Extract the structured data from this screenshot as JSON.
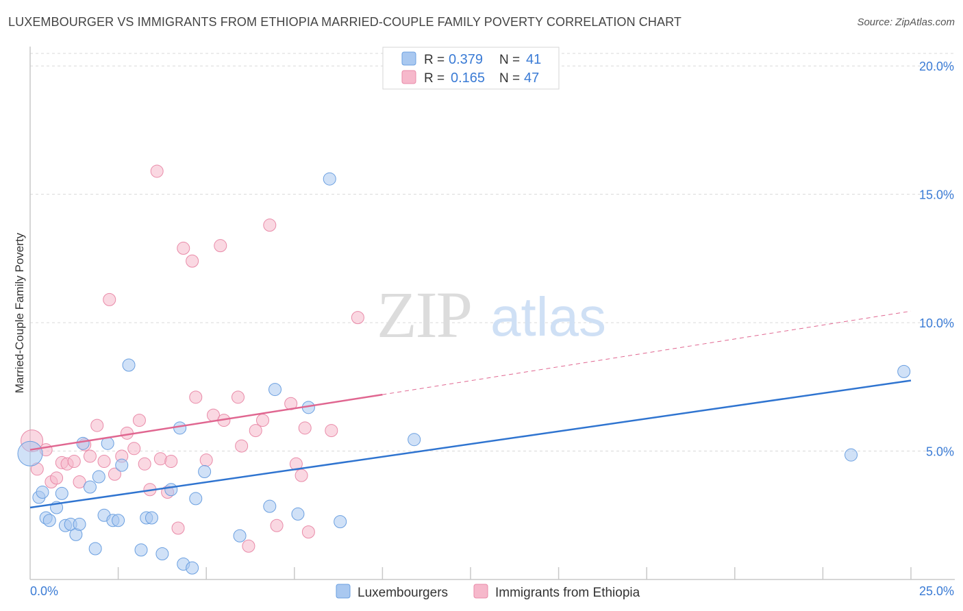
{
  "title": "LUXEMBOURGER VS IMMIGRANTS FROM ETHIOPIA MARRIED-COUPLE FAMILY POVERTY CORRELATION CHART",
  "source": "Source: ZipAtlas.com",
  "watermark": {
    "zip": "ZIP",
    "atlas": "atlas"
  },
  "colors": {
    "blue_fill": "#a9c8f0",
    "blue_stroke": "#6a9fe0",
    "blue_line": "#2f74d0",
    "pink_fill": "#f6b8cb",
    "pink_stroke": "#e98aa8",
    "pink_line": "#e06690",
    "tick_text": "#3a7bd5",
    "grid": "#d9d9d9"
  },
  "chart_data": {
    "type": "scatter",
    "xlabel": "",
    "ylabel": "Married-Couple Family Poverty",
    "xlim": [
      0,
      25
    ],
    "ylim": [
      0,
      20.5
    ],
    "x_tick_labels": [
      "0.0%",
      "25.0%"
    ],
    "y_ticks": [
      5,
      10,
      15,
      20
    ],
    "y_tick_labels": [
      "5.0%",
      "10.0%",
      "15.0%",
      "20.0%"
    ],
    "legend": [
      {
        "r_label": "R =",
        "r_value": "0.379",
        "n_label": "N =",
        "n_value": "41"
      },
      {
        "r_label": "R =",
        "r_value": "0.165",
        "n_label": "N =",
        "n_value": "47"
      }
    ],
    "series": [
      {
        "name": "Luxembourgers",
        "trend": {
          "x0": 0,
          "y0": 2.8,
          "x1": 25,
          "y1": 7.75
        },
        "points": [
          [
            0.0,
            4.9,
            18
          ],
          [
            0.25,
            3.2,
            9
          ],
          [
            0.35,
            3.4,
            9
          ],
          [
            0.45,
            2.4,
            9
          ],
          [
            0.55,
            2.3,
            9
          ],
          [
            0.75,
            2.8,
            9
          ],
          [
            0.9,
            3.35,
            9
          ],
          [
            1.0,
            2.1,
            9
          ],
          [
            1.15,
            2.15,
            9
          ],
          [
            1.3,
            1.75,
            9
          ],
          [
            1.4,
            2.15,
            9
          ],
          [
            1.5,
            5.3,
            9
          ],
          [
            1.7,
            3.6,
            9
          ],
          [
            1.85,
            1.2,
            9
          ],
          [
            1.95,
            4.0,
            9
          ],
          [
            2.1,
            2.5,
            9
          ],
          [
            2.2,
            5.3,
            9
          ],
          [
            2.35,
            2.3,
            9
          ],
          [
            2.5,
            2.3,
            9
          ],
          [
            2.6,
            4.45,
            9
          ],
          [
            2.8,
            8.35,
            9
          ],
          [
            3.15,
            1.15,
            9
          ],
          [
            3.3,
            2.4,
            9
          ],
          [
            3.45,
            2.4,
            9
          ],
          [
            3.75,
            1.0,
            9
          ],
          [
            4.0,
            3.5,
            9
          ],
          [
            4.25,
            5.9,
            9
          ],
          [
            4.35,
            0.6,
            9
          ],
          [
            4.6,
            0.45,
            9
          ],
          [
            4.7,
            3.15,
            9
          ],
          [
            4.95,
            4.2,
            9
          ],
          [
            5.95,
            1.7,
            9
          ],
          [
            6.8,
            2.85,
            9
          ],
          [
            6.95,
            7.4,
            9
          ],
          [
            7.6,
            2.55,
            9
          ],
          [
            7.9,
            6.7,
            9
          ],
          [
            8.5,
            15.6,
            9
          ],
          [
            8.8,
            2.25,
            9
          ],
          [
            10.9,
            5.45,
            9
          ],
          [
            23.3,
            4.85,
            9
          ],
          [
            24.8,
            8.1,
            9
          ]
        ]
      },
      {
        "name": "Immigrants from Ethiopia",
        "trend": {
          "x0": 0,
          "y0": 5.05,
          "x1": 10,
          "y1": 7.2,
          "dash_x1": 25,
          "dash_y1": 10.45
        },
        "points": [
          [
            0.05,
            5.4,
            16
          ],
          [
            0.2,
            4.3,
            9
          ],
          [
            0.45,
            5.05,
            9
          ],
          [
            0.6,
            3.8,
            9
          ],
          [
            0.75,
            3.95,
            9
          ],
          [
            0.9,
            4.55,
            9
          ],
          [
            1.05,
            4.5,
            9
          ],
          [
            1.25,
            4.6,
            9
          ],
          [
            1.4,
            3.8,
            9
          ],
          [
            1.55,
            5.25,
            9
          ],
          [
            1.7,
            4.8,
            9
          ],
          [
            1.9,
            6.0,
            9
          ],
          [
            2.1,
            4.6,
            9
          ],
          [
            2.25,
            10.9,
            9
          ],
          [
            2.4,
            4.1,
            9
          ],
          [
            2.6,
            4.8,
            9
          ],
          [
            2.75,
            5.7,
            9
          ],
          [
            2.95,
            5.1,
            9
          ],
          [
            3.1,
            6.2,
            9
          ],
          [
            3.25,
            4.5,
            9
          ],
          [
            3.4,
            3.5,
            9
          ],
          [
            3.6,
            15.9,
            9
          ],
          [
            3.7,
            4.7,
            9
          ],
          [
            3.9,
            3.4,
            9
          ],
          [
            4.0,
            4.6,
            9
          ],
          [
            4.2,
            2.0,
            9
          ],
          [
            4.35,
            12.9,
            9
          ],
          [
            4.6,
            12.4,
            9
          ],
          [
            4.7,
            7.1,
            9
          ],
          [
            5.0,
            4.65,
            9
          ],
          [
            5.2,
            6.4,
            9
          ],
          [
            5.4,
            13.0,
            9
          ],
          [
            5.5,
            6.2,
            9
          ],
          [
            5.9,
            7.1,
            9
          ],
          [
            6.0,
            5.2,
            9
          ],
          [
            6.2,
            1.3,
            9
          ],
          [
            6.4,
            5.8,
            9
          ],
          [
            6.6,
            6.2,
            9
          ],
          [
            6.8,
            13.8,
            9
          ],
          [
            7.0,
            2.1,
            9
          ],
          [
            7.4,
            6.85,
            9
          ],
          [
            7.55,
            4.5,
            9
          ],
          [
            7.7,
            4.05,
            9
          ],
          [
            7.9,
            1.85,
            9
          ],
          [
            7.8,
            5.9,
            9
          ],
          [
            8.55,
            5.8,
            9
          ],
          [
            9.3,
            10.2,
            9
          ]
        ]
      }
    ]
  }
}
